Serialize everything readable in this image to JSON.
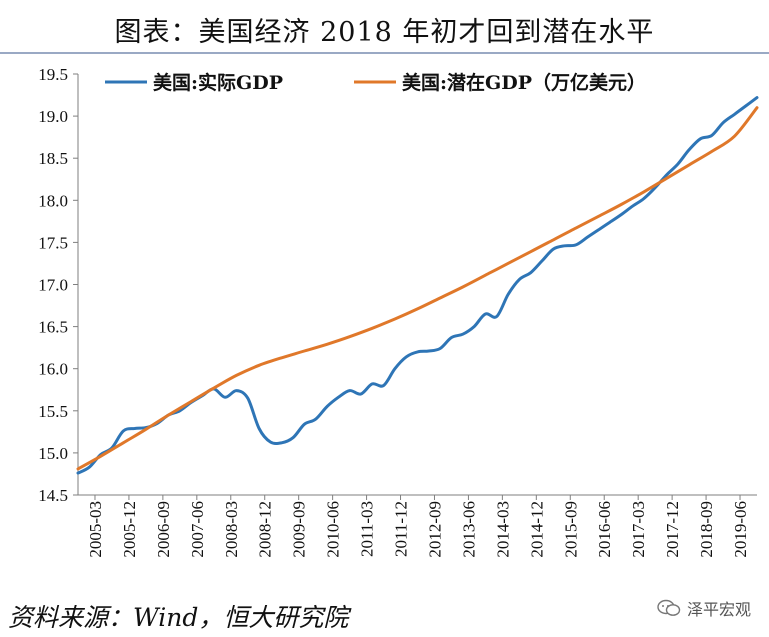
{
  "chart_data": {
    "type": "line",
    "title": "图表：美国经济 2018 年初才回到潜在水平",
    "xlabel": "",
    "ylabel": "",
    "ylim": [
      14.5,
      19.5
    ],
    "yticks": [
      "14.5",
      "15.0",
      "15.5",
      "16.0",
      "16.5",
      "17.0",
      "17.5",
      "18.0",
      "18.5",
      "19.0",
      "19.5"
    ],
    "xtick_labels": [
      "2005-03",
      "2005-12",
      "2006-09",
      "2007-06",
      "2008-03",
      "2008-12",
      "2009-09",
      "2010-06",
      "2011-03",
      "2011-12",
      "2012-09",
      "2013-06",
      "2014-03",
      "2014-12",
      "2015-09",
      "2016-06",
      "2017-03",
      "2017-12",
      "2018-09",
      "2019-06"
    ],
    "x_range": [
      2005.0,
      2020.0
    ],
    "legend_position": "top",
    "grid": false,
    "series": [
      {
        "name": "美国:实际GDP",
        "color": "#2e75b6",
        "points": [
          [
            2005.0,
            14.76
          ],
          [
            2005.25,
            14.83
          ],
          [
            2005.5,
            14.98
          ],
          [
            2005.75,
            15.06
          ],
          [
            2006.0,
            15.26
          ],
          [
            2006.25,
            15.29
          ],
          [
            2006.5,
            15.3
          ],
          [
            2006.75,
            15.35
          ],
          [
            2007.0,
            15.45
          ],
          [
            2007.25,
            15.5
          ],
          [
            2007.5,
            15.6
          ],
          [
            2007.75,
            15.68
          ],
          [
            2008.0,
            15.76
          ],
          [
            2008.25,
            15.66
          ],
          [
            2008.5,
            15.74
          ],
          [
            2008.75,
            15.65
          ],
          [
            2009.0,
            15.29
          ],
          [
            2009.25,
            15.13
          ],
          [
            2009.5,
            15.12
          ],
          [
            2009.75,
            15.18
          ],
          [
            2010.0,
            15.34
          ],
          [
            2010.25,
            15.4
          ],
          [
            2010.5,
            15.55
          ],
          [
            2010.75,
            15.66
          ],
          [
            2011.0,
            15.74
          ],
          [
            2011.25,
            15.7
          ],
          [
            2011.5,
            15.82
          ],
          [
            2011.75,
            15.8
          ],
          [
            2012.0,
            16.0
          ],
          [
            2012.25,
            16.14
          ],
          [
            2012.5,
            16.2
          ],
          [
            2012.75,
            16.21
          ],
          [
            2013.0,
            16.24
          ],
          [
            2013.25,
            16.37
          ],
          [
            2013.5,
            16.41
          ],
          [
            2013.75,
            16.5
          ],
          [
            2014.0,
            16.65
          ],
          [
            2014.25,
            16.62
          ],
          [
            2014.5,
            16.88
          ],
          [
            2014.75,
            17.06
          ],
          [
            2015.0,
            17.14
          ],
          [
            2015.25,
            17.28
          ],
          [
            2015.5,
            17.42
          ],
          [
            2015.75,
            17.46
          ],
          [
            2016.0,
            17.47
          ],
          [
            2016.25,
            17.56
          ],
          [
            2016.5,
            17.65
          ],
          [
            2016.75,
            17.74
          ],
          [
            2017.0,
            17.83
          ],
          [
            2017.25,
            17.93
          ],
          [
            2017.5,
            18.02
          ],
          [
            2017.75,
            18.15
          ],
          [
            2018.0,
            18.3
          ],
          [
            2018.25,
            18.43
          ],
          [
            2018.5,
            18.6
          ],
          [
            2018.75,
            18.73
          ],
          [
            2019.0,
            18.77
          ],
          [
            2019.25,
            18.92
          ],
          [
            2019.5,
            19.02
          ],
          [
            2019.75,
            19.12
          ],
          [
            2020.0,
            19.22
          ]
        ]
      },
      {
        "name": "美国:潜在GDP（万亿美元）",
        "color": "#e0782a",
        "points": [
          [
            2005.0,
            14.81
          ],
          [
            2005.5,
            14.96
          ],
          [
            2006.0,
            15.12
          ],
          [
            2006.5,
            15.28
          ],
          [
            2007.0,
            15.45
          ],
          [
            2007.5,
            15.61
          ],
          [
            2008.0,
            15.77
          ],
          [
            2008.5,
            15.92
          ],
          [
            2009.0,
            16.04
          ],
          [
            2009.5,
            16.13
          ],
          [
            2010.0,
            16.21
          ],
          [
            2010.5,
            16.29
          ],
          [
            2011.0,
            16.38
          ],
          [
            2011.5,
            16.48
          ],
          [
            2012.0,
            16.59
          ],
          [
            2012.5,
            16.71
          ],
          [
            2013.0,
            16.84
          ],
          [
            2013.5,
            16.97
          ],
          [
            2014.0,
            17.11
          ],
          [
            2014.5,
            17.25
          ],
          [
            2015.0,
            17.39
          ],
          [
            2015.5,
            17.53
          ],
          [
            2016.0,
            17.67
          ],
          [
            2016.5,
            17.81
          ],
          [
            2017.0,
            17.95
          ],
          [
            2017.5,
            18.1
          ],
          [
            2018.0,
            18.26
          ],
          [
            2018.5,
            18.42
          ],
          [
            2019.0,
            18.58
          ],
          [
            2019.5,
            18.76
          ],
          [
            2020.0,
            19.1
          ]
        ]
      }
    ]
  },
  "footer": {
    "source": "资料来源：Wind，恒大研究院",
    "watermark": "泽平宏观"
  }
}
